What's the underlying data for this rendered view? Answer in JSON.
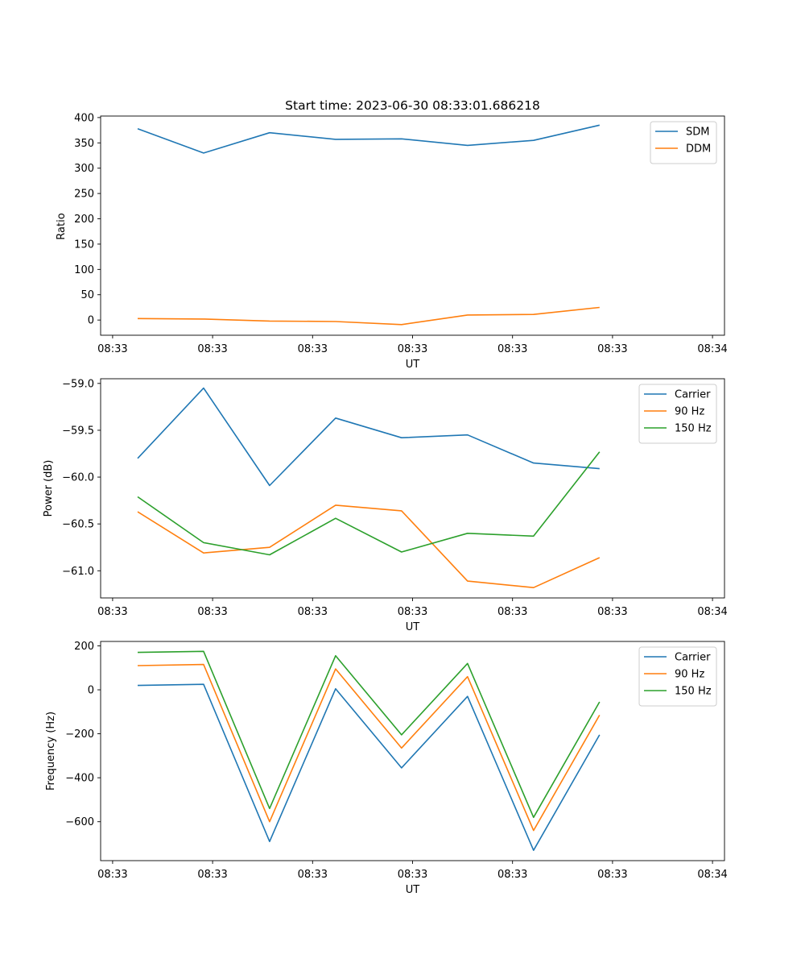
{
  "figure": {
    "title": "Start time: 2023-06-30 08:33:01.686218",
    "x_tick_labels": [
      "08:33",
      "08:33",
      "08:33",
      "08:33",
      "08:33",
      "08:33",
      "08:34"
    ],
    "x_ticks": [
      -0.25,
      0.75,
      1.75,
      2.75,
      3.75,
      4.75,
      5.75
    ],
    "xlim": [
      -0.37,
      5.87
    ]
  },
  "chart_data": [
    {
      "type": "line",
      "title": "Start time: 2023-06-30 08:33:01.686218",
      "xlabel": "UT",
      "ylabel": "Ratio",
      "x": [
        0,
        0.66,
        1.32,
        1.98,
        2.64,
        3.3,
        3.96,
        4.62
      ],
      "ylim": [
        -30,
        403
      ],
      "yticks": [
        0,
        50,
        100,
        150,
        200,
        250,
        300,
        350,
        400
      ],
      "ytick_labels": [
        "0",
        "50",
        "100",
        "150",
        "200",
        "250",
        "300",
        "350",
        "400"
      ],
      "grid": false,
      "legend": "upper-right",
      "series": [
        {
          "name": "SDM",
          "color": "#1f77b4",
          "values": [
            378,
            330,
            370,
            357,
            358,
            345,
            355,
            385
          ]
        },
        {
          "name": "DDM",
          "color": "#ff7f0e",
          "values": [
            3,
            2,
            -2,
            -3,
            -9,
            10,
            11,
            25
          ]
        }
      ]
    },
    {
      "type": "line",
      "xlabel": "UT",
      "ylabel": "Power (dB)",
      "x": [
        0,
        0.66,
        1.32,
        1.98,
        2.64,
        3.3,
        3.96,
        4.62
      ],
      "ylim": [
        -61.29,
        -58.95
      ],
      "yticks": [
        -59.0,
        -59.5,
        -60.0,
        -60.5,
        -61.0
      ],
      "ytick_labels": [
        "−59.0",
        "−59.5",
        "−60.0",
        "−60.5",
        "−61.0"
      ],
      "grid": false,
      "legend": "upper-right",
      "series": [
        {
          "name": "Carrier",
          "color": "#1f77b4",
          "values": [
            -59.8,
            -59.05,
            -60.09,
            -59.37,
            -59.58,
            -59.55,
            -59.85,
            -59.91
          ]
        },
        {
          "name": "90 Hz",
          "color": "#ff7f0e",
          "values": [
            -60.37,
            -60.81,
            -60.75,
            -60.3,
            -60.36,
            -61.11,
            -61.18,
            -60.86
          ]
        },
        {
          "name": "150 Hz",
          "color": "#2ca02c",
          "values": [
            -60.21,
            -60.7,
            -60.83,
            -60.44,
            -60.8,
            -60.6,
            -60.63,
            -59.73
          ]
        }
      ]
    },
    {
      "type": "line",
      "xlabel": "UT",
      "ylabel": "Frequency (Hz)",
      "x": [
        0,
        0.66,
        1.32,
        1.98,
        2.64,
        3.3,
        3.96,
        4.62
      ],
      "ylim": [
        -777,
        220
      ],
      "yticks": [
        200,
        0,
        -200,
        -400,
        -600
      ],
      "ytick_labels": [
        "200",
        "0",
        "−200",
        "−400",
        "−600"
      ],
      "grid": false,
      "legend": "upper-right",
      "series": [
        {
          "name": "Carrier",
          "color": "#1f77b4",
          "values": [
            20,
            25,
            -690,
            5,
            -355,
            -30,
            -730,
            -205
          ]
        },
        {
          "name": "90 Hz",
          "color": "#ff7f0e",
          "values": [
            110,
            115,
            -600,
            95,
            -265,
            60,
            -640,
            -115
          ]
        },
        {
          "name": "150 Hz",
          "color": "#2ca02c",
          "values": [
            170,
            175,
            -540,
            155,
            -205,
            120,
            -580,
            -55
          ]
        }
      ]
    }
  ]
}
